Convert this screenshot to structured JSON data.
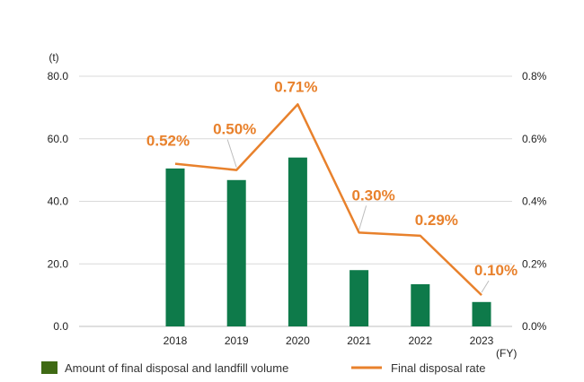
{
  "chart_data": {
    "type": "bar+line",
    "categories": [
      "2018",
      "2019",
      "2020",
      "2021",
      "2022",
      "2023"
    ],
    "x_unit": "(FY)",
    "series": [
      {
        "name": "Amount of final disposal and landfill volume",
        "type": "bar",
        "axis": "left",
        "values": [
          50.5,
          46.8,
          54.0,
          18.0,
          13.5,
          7.8
        ]
      },
      {
        "name": "Final disposal rate",
        "type": "line",
        "axis": "right",
        "values": [
          0.52,
          0.5,
          0.71,
          0.3,
          0.29,
          0.1
        ],
        "labels": [
          "0.52%",
          "0.50%",
          "0.71%",
          "0.30%",
          "0.29%",
          "0.10%"
        ]
      }
    ],
    "left_axis": {
      "unit": "(t)",
      "range": [
        0,
        80
      ],
      "ticks": [
        0,
        20,
        40,
        60,
        80
      ],
      "tick_labels": [
        "0.0",
        "20.0",
        "40.0",
        "60.0",
        "80.0"
      ]
    },
    "right_axis": {
      "range": [
        0,
        0.8
      ],
      "ticks": [
        0,
        0.2,
        0.4,
        0.6,
        0.8
      ],
      "tick_labels": [
        "0.0%",
        "0.2%",
        "0.4%",
        "0.6%",
        "0.8%"
      ]
    },
    "grid": true,
    "legend_position": "bottom",
    "colors": {
      "bar": "#0e7a4a",
      "bar_legend": "#3f6a14",
      "line": "#e8812c",
      "grid": "#d9d9d9"
    }
  }
}
